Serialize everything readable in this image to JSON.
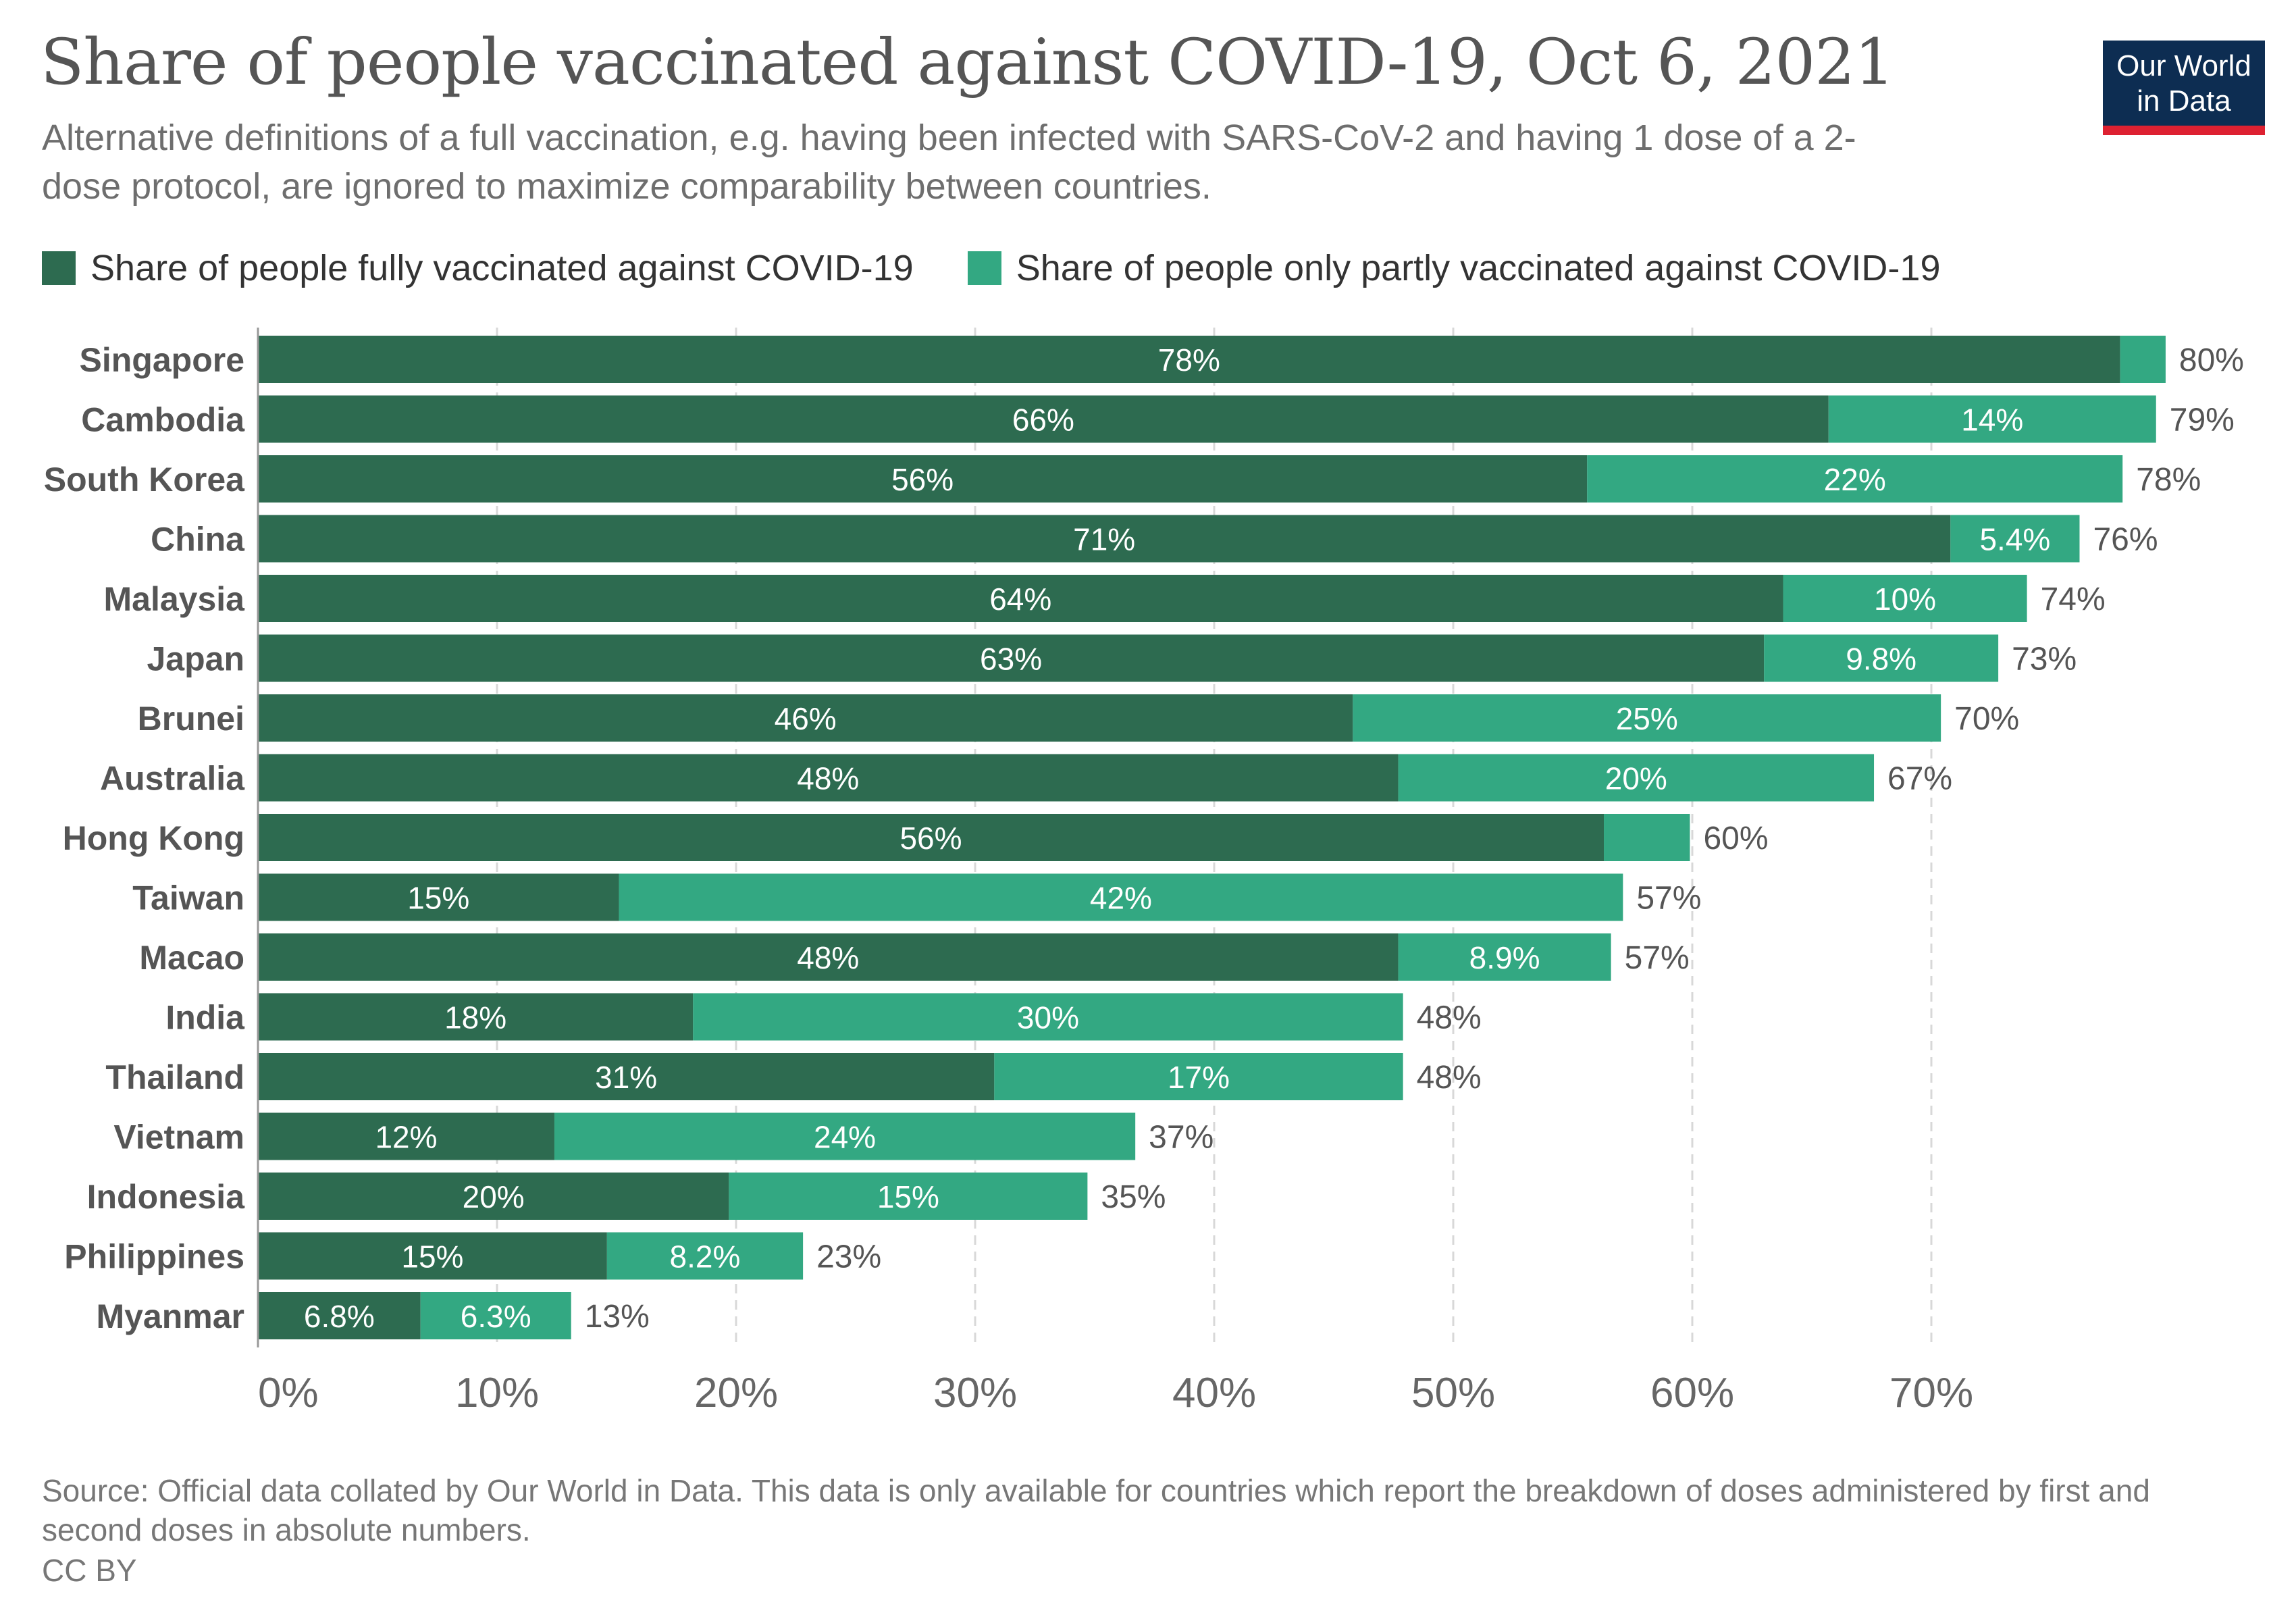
{
  "title": "Share of people vaccinated against COVID-19, Oct 6, 2021",
  "subtitle": "Alternative definitions of a full vaccination, e.g. having been infected with SARS-CoV-2 and having 1 dose of a 2-dose protocol, are ignored to maximize comparability between countries.",
  "logo": {
    "line1": "Our World",
    "line2": "in Data"
  },
  "source": "Source: Official data collated by Our World in Data. This data is only available for countries which report the breakdown of doses administered by first and second doses in absolute numbers.",
  "license": "CC BY",
  "colors": {
    "fully": "#2d6b50",
    "partly": "#33a882",
    "accent": "#dd2131",
    "logo_bg": "#0d2d52"
  },
  "chart_data": {
    "type": "bar",
    "orientation": "horizontal",
    "stacked": true,
    "categories": [
      "Singapore",
      "Cambodia",
      "South Korea",
      "China",
      "Malaysia",
      "Japan",
      "Brunei",
      "Australia",
      "Hong Kong",
      "Taiwan",
      "Macao",
      "India",
      "Thailand",
      "Vietnam",
      "Indonesia",
      "Philippines",
      "Myanmar"
    ],
    "series": [
      {
        "name": "Share of people fully vaccinated against COVID-19",
        "color": "#2d6b50",
        "values": [
          77.9,
          65.7,
          55.6,
          70.8,
          63.8,
          63.0,
          45.8,
          47.7,
          56.3,
          15.1,
          47.7,
          18.2,
          30.8,
          12.4,
          19.7,
          14.6,
          6.8
        ],
        "labels": [
          "78%",
          "66%",
          "56%",
          "71%",
          "64%",
          "63%",
          "46%",
          "48%",
          "56%",
          "15%",
          "48%",
          "18%",
          "31%",
          "12%",
          "20%",
          "15%",
          "6.8%"
        ]
      },
      {
        "name": "Share of people only partly vaccinated against COVID-19",
        "color": "#33a882",
        "values": [
          1.9,
          13.7,
          22.4,
          5.4,
          10.2,
          9.8,
          24.6,
          19.9,
          3.6,
          42.0,
          8.9,
          29.7,
          17.1,
          24.3,
          15.0,
          8.2,
          6.3
        ],
        "labels": [
          "",
          "14%",
          "22%",
          "5.4%",
          "10%",
          "9.8%",
          "25%",
          "20%",
          "",
          "42%",
          "8.9%",
          "30%",
          "17%",
          "24%",
          "15%",
          "8.2%",
          "6.3%"
        ]
      }
    ],
    "totals": [
      "80%",
      "79%",
      "78%",
      "76%",
      "74%",
      "73%",
      "70%",
      "67%",
      "60%",
      "57%",
      "57%",
      "48%",
      "48%",
      "37%",
      "35%",
      "23%",
      "13%"
    ],
    "xticks": [
      0,
      10,
      20,
      30,
      40,
      50,
      60,
      70
    ],
    "xtick_labels": [
      "0%",
      "10%",
      "20%",
      "30%",
      "40%",
      "50%",
      "60%",
      "70%"
    ],
    "xlim": [
      0,
      80
    ],
    "grid": true,
    "legend_position": "top-left"
  }
}
